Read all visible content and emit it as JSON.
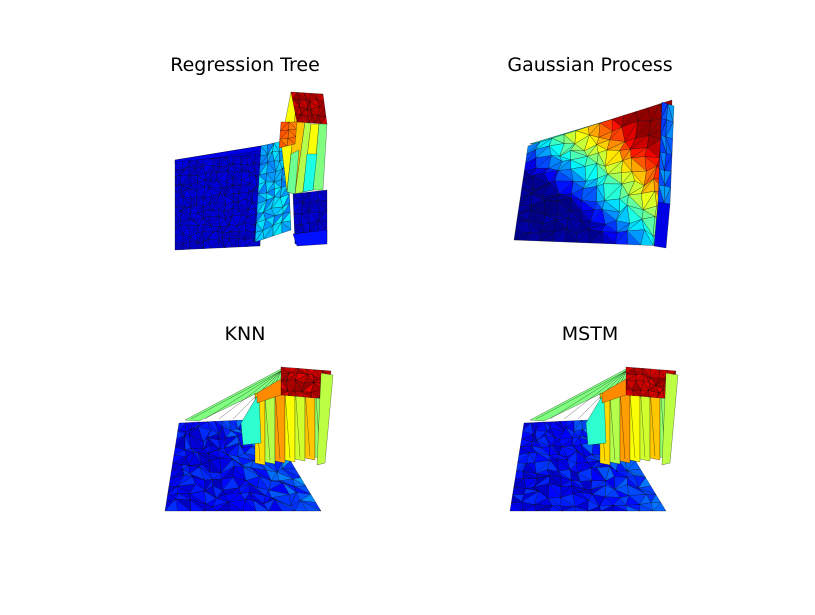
{
  "chart_data": [
    {
      "type": "surface3d",
      "title": "Regression Tree",
      "colormap": "jet",
      "axes_visible": false,
      "grid": false,
      "surface": "piecewise-constant step surface: large flat low plateau, narrow mid-level ridge, tall block of high values at the back corner"
    },
    {
      "type": "surface3d",
      "title": "Gaussian Process",
      "colormap": "jet",
      "axes_visible": false,
      "grid": false,
      "surface": "smooth surface rising from low values at the front-left to a peak at the back-right corner"
    },
    {
      "type": "surface3d",
      "title": "KNN",
      "colormap": "jet",
      "axes_visible": false,
      "grid": false,
      "surface": "bumpy low base with a steep rise to a tall high block at the back corner"
    },
    {
      "type": "surface3d",
      "title": "MSTM",
      "colormap": "jet",
      "axes_visible": false,
      "grid": false,
      "surface": "bumpy low base with a steep rise to a tall high block at the back corner"
    }
  ]
}
